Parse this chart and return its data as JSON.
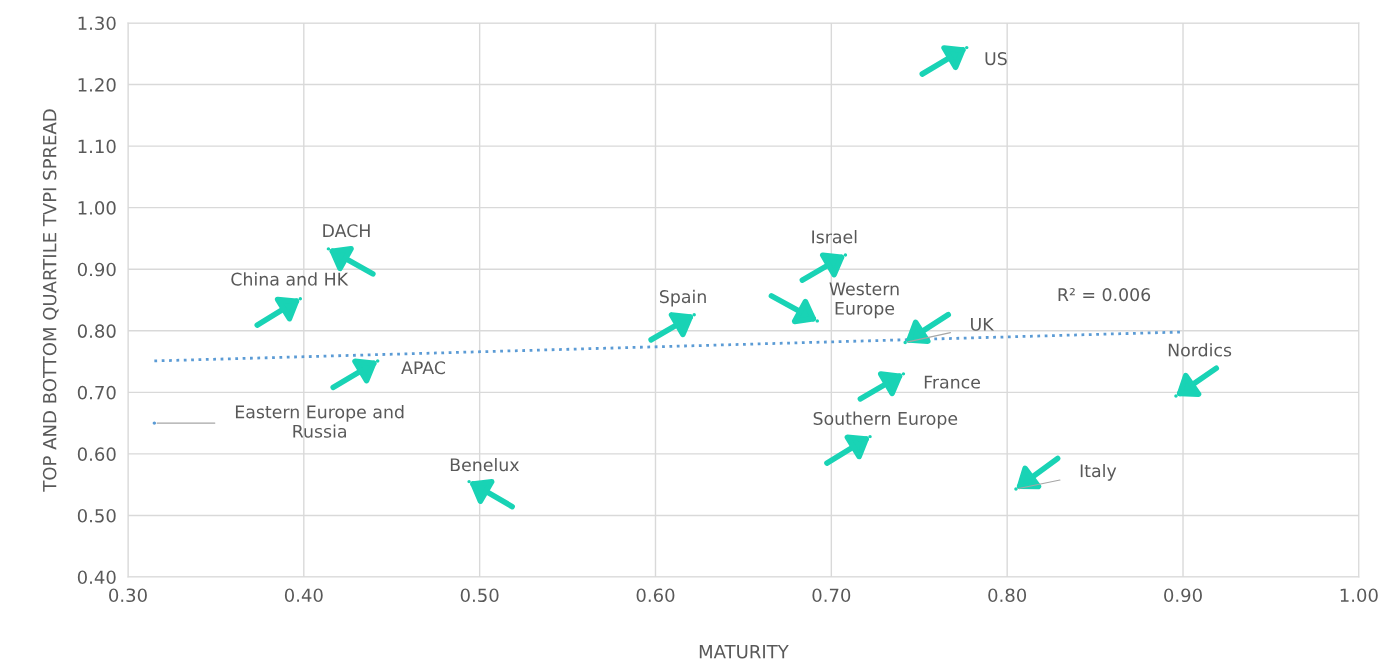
{
  "chart_data": {
    "type": "scatter",
    "xlabel": "MATURITY",
    "ylabel": "TOP AND BOTTOM QUARTILE TVPI SPREAD",
    "xlim": [
      0.3,
      1.0
    ],
    "ylim": [
      0.4,
      1.3
    ],
    "xticks": [
      {
        "value": 0.3,
        "label": "0.30"
      },
      {
        "value": 0.4,
        "label": "0.40"
      },
      {
        "value": 0.5,
        "label": "0.50"
      },
      {
        "value": 0.6,
        "label": "0.60"
      },
      {
        "value": 0.7,
        "label": "0.70"
      },
      {
        "value": 0.8,
        "label": "0.80"
      },
      {
        "value": 0.9,
        "label": "0.90"
      },
      {
        "value": 1.0,
        "label": "1.00"
      }
    ],
    "yticks": [
      {
        "value": 0.4,
        "label": "0.40"
      },
      {
        "value": 0.5,
        "label": "0.50"
      },
      {
        "value": 0.6,
        "label": "0.60"
      },
      {
        "value": 0.7,
        "label": "0.70"
      },
      {
        "value": 0.8,
        "label": "0.80"
      },
      {
        "value": 0.9,
        "label": "0.90"
      },
      {
        "value": 1.0,
        "label": "1.00"
      },
      {
        "value": 1.1,
        "label": "1.10"
      },
      {
        "value": 1.2,
        "label": "1.20"
      },
      {
        "value": 1.3,
        "label": "1.30"
      }
    ],
    "grid": true,
    "legend": false,
    "series": [
      {
        "x": [
          0.777,
          0.414,
          0.398,
          0.442,
          0.315,
          0.494,
          0.622,
          0.708,
          0.692,
          0.742,
          0.741,
          0.722,
          0.805,
          0.896
        ],
        "values": [
          1.26,
          0.933,
          0.852,
          0.751,
          0.65,
          0.555,
          0.826,
          0.923,
          0.816,
          0.781,
          0.73,
          0.628,
          0.543,
          0.694
        ],
        "colors": [
          "#19d3b5",
          "#19d3b5",
          "#19d3b5",
          "#19d3b5",
          "#5b9bd5",
          "#19d3b5",
          "#19d3b5",
          "#19d3b5",
          "#19d3b5",
          "#19d3b5",
          "#19d3b5",
          "#19d3b5",
          "#19d3b5",
          "#19d3b5"
        ]
      },
      {
        "type": "line",
        "x": [
          0.315,
          0.899
        ],
        "values": [
          0.751,
          0.798
        ],
        "color": "#5b9bd5",
        "line_style": "dotted"
      }
    ],
    "annotations": [
      {
        "text": "US",
        "x": 0.777,
        "y": 1.26
      },
      {
        "text": "DACH",
        "x": 0.414,
        "y": 0.933
      },
      {
        "text": "China and HK",
        "x": 0.398,
        "y": 0.852
      },
      {
        "text": "APAC",
        "x": 0.442,
        "y": 0.751
      },
      {
        "text": "Eastern Europe and\nRussia",
        "x": 0.315,
        "y": 0.65
      },
      {
        "text": "Benelux",
        "x": 0.494,
        "y": 0.555
      },
      {
        "text": "Spain",
        "x": 0.622,
        "y": 0.826
      },
      {
        "text": "Israel",
        "x": 0.708,
        "y": 0.923
      },
      {
        "text": "Western\nEurope",
        "x": 0.692,
        "y": 0.816
      },
      {
        "text": "UK",
        "x": 0.742,
        "y": 0.781
      },
      {
        "text": "France",
        "x": 0.741,
        "y": 0.73
      },
      {
        "text": "Southern Europe",
        "x": 0.722,
        "y": 0.628
      },
      {
        "text": "Italy",
        "x": 0.805,
        "y": 0.543
      },
      {
        "text": "Nordics",
        "x": 0.896,
        "y": 0.694
      },
      "R² = 0.006"
    ]
  }
}
